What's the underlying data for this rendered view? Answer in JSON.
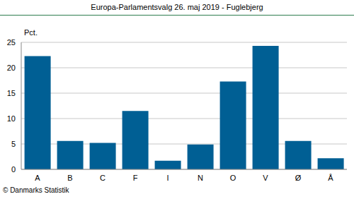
{
  "chart_data": {
    "type": "bar",
    "title": "Europa-Parlamentsvalg 26. maj 2019 - Fuglebjerg",
    "y_label": "Pct.",
    "annotation": "© Danmarks Statistik",
    "categories": [
      "A",
      "B",
      "C",
      "F",
      "I",
      "N",
      "O",
      "V",
      "Ø",
      "Å"
    ],
    "values": [
      22.3,
      5.6,
      5.2,
      11.5,
      1.7,
      4.9,
      17.3,
      24.3,
      5.6,
      2.2
    ],
    "color": "#005f94",
    "ylim": [
      0,
      25
    ],
    "yticks": [
      0,
      5,
      10,
      15,
      20,
      25
    ],
    "grid": true
  }
}
